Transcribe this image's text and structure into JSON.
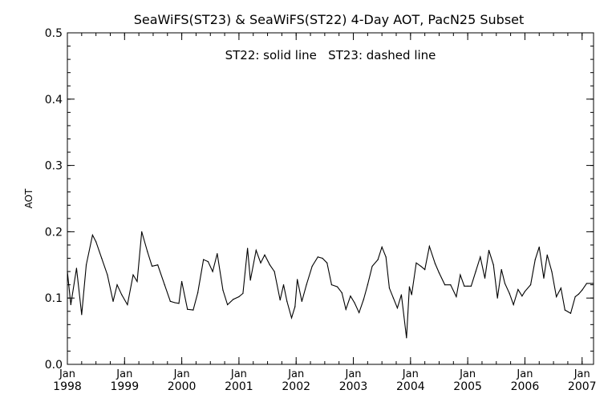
{
  "chart_data": {
    "type": "line",
    "title": "SeaWiFS(ST23) & SeaWiFS(ST22) 4-Day AOT, PacN25 Subset",
    "annotation": "ST22: solid line   ST23: dashed line",
    "ylabel": "AOT",
    "xlabel": "",
    "ylim": [
      0.0,
      0.5
    ],
    "xlim": [
      1998.0,
      2007.2
    ],
    "y_ticks": [
      {
        "value": 0.0,
        "label": "0.0"
      },
      {
        "value": 0.1,
        "label": "0.1"
      },
      {
        "value": 0.2,
        "label": "0.2"
      },
      {
        "value": 0.3,
        "label": "0.3"
      },
      {
        "value": 0.4,
        "label": "0.4"
      },
      {
        "value": 0.5,
        "label": "0.5"
      }
    ],
    "x_ticks": [
      {
        "value": 1998,
        "month": "Jan",
        "year": "1998"
      },
      {
        "value": 1999,
        "month": "Jan",
        "year": "1999"
      },
      {
        "value": 2000,
        "month": "Jan",
        "year": "2000"
      },
      {
        "value": 2001,
        "month": "Jan",
        "year": "2001"
      },
      {
        "value": 2002,
        "month": "Jan",
        "year": "2002"
      },
      {
        "value": 2003,
        "month": "Jan",
        "year": "2003"
      },
      {
        "value": 2004,
        "month": "Jan",
        "year": "2004"
      },
      {
        "value": 2005,
        "month": "Jan",
        "year": "2005"
      },
      {
        "value": 2006,
        "month": "Jan",
        "year": "2006"
      },
      {
        "value": 2007,
        "month": "Jan",
        "year": "2007"
      }
    ],
    "line_color": "#000000",
    "series": [
      {
        "name": "ST22",
        "style": "solid",
        "x": [
          1998.0,
          1998.06,
          1998.16,
          1998.25,
          1998.33,
          1998.44,
          1998.5,
          1998.6,
          1998.7,
          1998.8,
          1998.87,
          1998.95,
          1999.05,
          1999.15,
          1999.22,
          1999.3,
          1999.4,
          1999.48,
          1999.58,
          1999.7,
          1999.8,
          1999.88,
          1999.95,
          2000.0,
          2000.1,
          2000.2,
          2000.28,
          2000.38,
          2000.46,
          2000.54,
          2000.62,
          2000.72,
          2000.8,
          2000.9,
          2001.0,
          2001.07,
          2001.15,
          2001.2,
          2001.3,
          2001.38,
          2001.45,
          2001.54,
          2001.62,
          2001.72,
          2001.78,
          2001.84,
          2001.92,
          2001.98,
          2002.02,
          2002.1,
          2002.18,
          2002.28,
          2002.38,
          2002.46,
          2002.54,
          2002.62,
          2002.72,
          2002.8,
          2002.87,
          2002.95,
          2003.02,
          2003.1,
          2003.18,
          2003.25,
          2003.33,
          2003.43,
          2003.5,
          2003.57,
          2003.63,
          2003.7,
          2003.77,
          2003.84,
          2003.93,
          2003.98,
          2004.02,
          2004.1,
          2004.18,
          2004.25,
          2004.33,
          2004.43,
          2004.5,
          2004.6,
          2004.7,
          2004.8,
          2004.87,
          2004.94,
          2005.0,
          2005.06,
          2005.14,
          2005.22,
          2005.3,
          2005.37,
          2005.45,
          2005.52,
          2005.59,
          2005.65,
          2005.73,
          2005.8,
          2005.88,
          2005.95,
          2006.0,
          2006.1,
          2006.18,
          2006.25,
          2006.33,
          2006.39,
          2006.47,
          2006.55,
          2006.63,
          2006.7,
          2006.8,
          2006.88,
          2006.94,
          2007.0,
          2007.08,
          2007.15,
          2007.2
        ],
        "y": [
          0.14,
          0.09,
          0.145,
          0.075,
          0.15,
          0.195,
          0.185,
          0.16,
          0.135,
          0.095,
          0.12,
          0.105,
          0.09,
          0.135,
          0.125,
          0.2,
          0.17,
          0.148,
          0.15,
          0.12,
          0.095,
          0.093,
          0.092,
          0.125,
          0.083,
          0.082,
          0.108,
          0.158,
          0.155,
          0.14,
          0.167,
          0.112,
          0.09,
          0.098,
          0.102,
          0.107,
          0.175,
          0.127,
          0.172,
          0.153,
          0.165,
          0.15,
          0.14,
          0.097,
          0.12,
          0.095,
          0.07,
          0.087,
          0.128,
          0.095,
          0.12,
          0.148,
          0.162,
          0.16,
          0.153,
          0.12,
          0.117,
          0.108,
          0.083,
          0.103,
          0.093,
          0.078,
          0.098,
          0.12,
          0.148,
          0.158,
          0.177,
          0.162,
          0.115,
          0.1,
          0.085,
          0.105,
          0.04,
          0.117,
          0.105,
          0.153,
          0.148,
          0.143,
          0.178,
          0.152,
          0.138,
          0.12,
          0.12,
          0.102,
          0.135,
          0.118,
          0.118,
          0.118,
          0.14,
          0.162,
          0.13,
          0.172,
          0.15,
          0.1,
          0.143,
          0.122,
          0.107,
          0.09,
          0.113,
          0.103,
          0.11,
          0.12,
          0.158,
          0.177,
          0.13,
          0.165,
          0.14,
          0.102,
          0.115,
          0.082,
          0.077,
          0.102,
          0.106,
          0.112,
          0.122,
          0.122,
          0.122
        ]
      }
    ]
  }
}
